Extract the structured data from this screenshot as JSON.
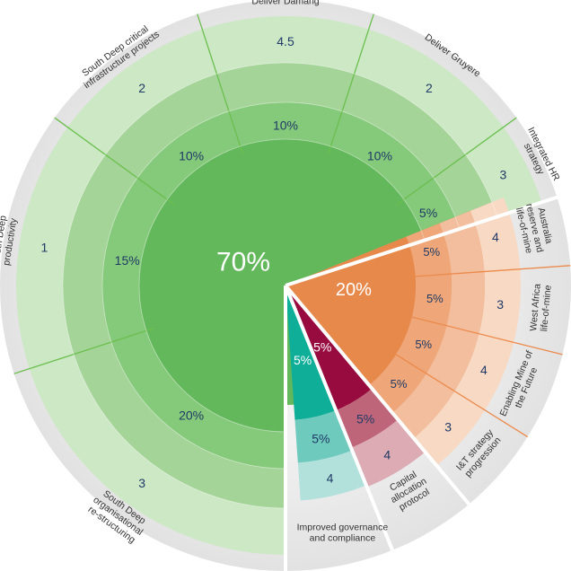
{
  "chart_data": {
    "type": "sunburst",
    "title": "",
    "colors": {
      "background": "#e6e6e6",
      "green_core": "#62b85b",
      "green_ring1": "#85c97a",
      "green_ring2": "#a4d498",
      "green_outer": "#cde8c5",
      "orange_core": "#e8894c",
      "orange_ring1": "#efa678",
      "orange_ring2": "#f3be9d",
      "orange_outer": "#f8d9c4",
      "teal_core": "#0fae99",
      "teal_ring1": "#6fcabe",
      "teal_outer": "#b2e1dc",
      "maroon_core": "#980b3e",
      "maroon_ring1": "#bf6579",
      "maroon_outer": "#dcabb4",
      "green_line": "#6bbf4e",
      "orange_line": "#eb8a4b",
      "number_text": "#1f3a66",
      "label_text": "#333333",
      "white": "#ffffff"
    },
    "groups": [
      {
        "name": "green",
        "weight_label": "70%",
        "weight": 70,
        "items": [
          {
            "label": "South Deep productivity",
            "weight_label": "15%",
            "weight": 15,
            "score": "1"
          },
          {
            "label": "South Deep critical infrastructure projects",
            "weight_label": "10%",
            "weight": 10,
            "score": "2"
          },
          {
            "label": "Deliver Damang",
            "weight_label": "10%",
            "weight": 10,
            "score": "4.5"
          },
          {
            "label": "Deliver Gruyere",
            "weight_label": "10%",
            "weight": 10,
            "score": "2"
          },
          {
            "label": "Integrated HR strategy",
            "weight_label": "5%",
            "weight": 5,
            "score": "3"
          },
          {
            "label": "South Deep organisational re-structuring",
            "weight_label": "20%",
            "weight": 20,
            "score": "3"
          }
        ]
      },
      {
        "name": "orange",
        "weight_label": "20%",
        "weight": 20,
        "items": [
          {
            "label": "Australia reserve and life-of-mine",
            "weight_label": "5%",
            "weight": 5,
            "score": "4"
          },
          {
            "label": "West Africa life-of-mine",
            "weight_label": "5%",
            "weight": 5,
            "score": "3"
          },
          {
            "label": "Enabling Mine of the Future",
            "weight_label": "5%",
            "weight": 5,
            "score": "4"
          },
          {
            "label": "I&T strategy progression",
            "weight_label": "5%",
            "weight": 5,
            "score": "3"
          }
        ]
      },
      {
        "name": "maroon",
        "weight_label": "5%",
        "weight": 5,
        "items": [
          {
            "label": "Capital allocation protocol",
            "weight_label": "5%",
            "weight": 5,
            "score": "4"
          }
        ]
      },
      {
        "name": "teal",
        "weight_label": "5%",
        "weight": 5,
        "items": [
          {
            "label": "Improved governance and compliance",
            "weight_label": "5%",
            "weight": 5,
            "score": "4"
          }
        ]
      }
    ]
  }
}
